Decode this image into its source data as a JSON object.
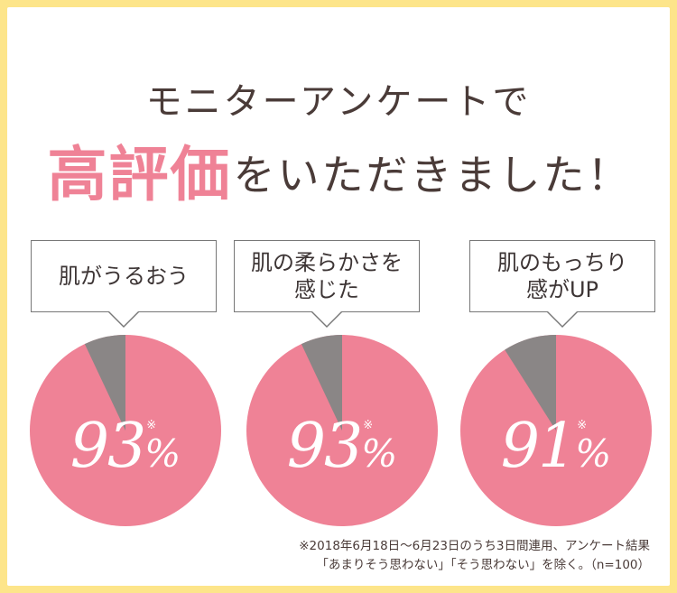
{
  "title_line1": "モニターアンケートで",
  "title_highlight": "高評価",
  "title_rest": "をいただきました！",
  "colors": {
    "pink": "#ef8296",
    "gray": "#8a8686",
    "frame": "#fde58a",
    "highlight": "#fdf3b5"
  },
  "items": [
    {
      "label_line1": "肌がうるおう",
      "label_line2": "",
      "value": "93",
      "unit": "%",
      "mark": "※",
      "ratio": 0.93
    },
    {
      "label_line1": "肌の柔らかさを",
      "label_line2": "感じた",
      "value": "93",
      "unit": "%",
      "mark": "※",
      "ratio": 0.93
    },
    {
      "label_line1": "肌のもっちり",
      "label_line2": "感がUP",
      "value": "91",
      "unit": "%",
      "mark": "※",
      "ratio": 0.91
    }
  ],
  "note_line1": "※2018年6月18日〜6月23日のうち3日間連用、アンケート結果",
  "note_line2": "「あまりそう思わない」「そう思わない」を除く。（n=100）"
}
